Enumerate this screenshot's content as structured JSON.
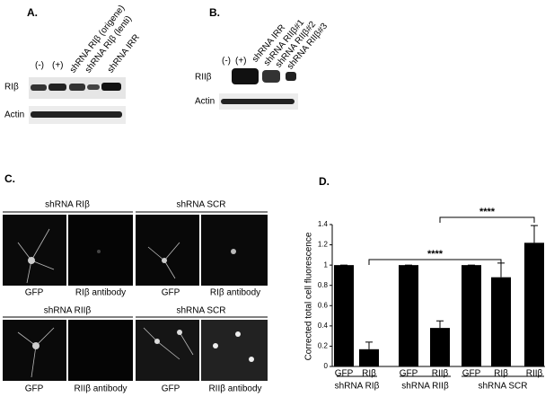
{
  "panel_a": {
    "letter": "A.",
    "lanes": [
      "(-)",
      "(+)",
      "shRNA RIβ (origene)",
      "shRNA RIβ (lenti)",
      "shRNA IRR"
    ],
    "rows": [
      "RIβ",
      "Actin"
    ]
  },
  "panel_b": {
    "letter": "B.",
    "lanes": [
      "(-)",
      "(+)",
      "shRNA IRR",
      "shRNA RIIβ#1",
      "shRNA RIIβ#2",
      "shRNA RIIβ#3"
    ],
    "rows": [
      "RIIβ",
      "Actin"
    ]
  },
  "panel_c": {
    "letter": "C.",
    "blocks": [
      {
        "title": "shRNA RIβ",
        "left": "GFP",
        "right": "RIβ antibody"
      },
      {
        "title": "shRNA SCR",
        "left": "GFP",
        "right": "RIβ antibody"
      },
      {
        "title": "shRNA RIIβ",
        "left": "GFP",
        "right": "RIIβ antibody"
      },
      {
        "title": "shRNA SCR",
        "left": "GFP",
        "right": "RIIβ antibody"
      }
    ]
  },
  "chart_data": {
    "type": "bar",
    "title": "D.",
    "y_label": "Corrected total cell fluorescence",
    "categories": [
      "GFP",
      "RIβ",
      "GFP",
      "RIIβ",
      "GFP",
      "RIβ",
      "RIIβ"
    ],
    "values": [
      1,
      0.17,
      1,
      0.38,
      1,
      0.88,
      1.22
    ],
    "errors": [
      0,
      0.07,
      0,
      0.07,
      0,
      0.14,
      0.17
    ],
    "groups": [
      "shRNA RIβ",
      "shRNA RIIβ",
      "shRNA SCR"
    ],
    "annotations": [
      "****",
      "****"
    ],
    "color": "#000000",
    "ylim": [
      0,
      1.4
    ],
    "yticks": [
      0,
      0.2,
      0.4,
      0.6,
      0.8,
      1,
      1.2,
      1.4
    ]
  }
}
